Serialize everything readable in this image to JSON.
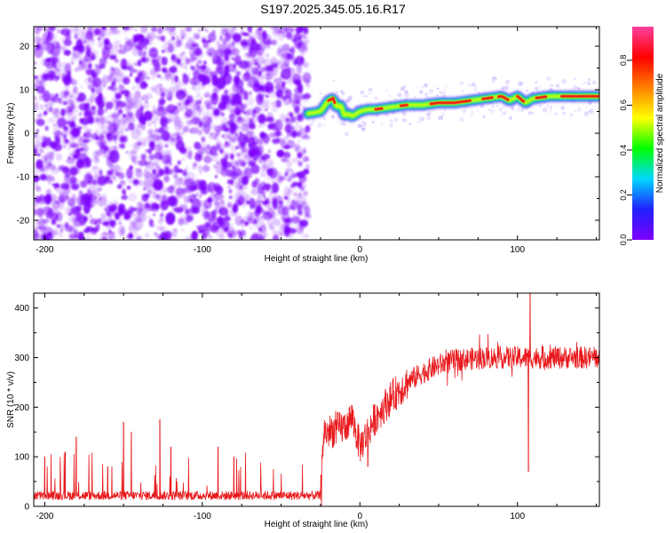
{
  "title": "S197.2025.345.05.16.R17",
  "chart_data": [
    {
      "type": "heatmap",
      "name": "spectrogram",
      "xlabel": "Height of straight line (km)",
      "ylabel": "Frequency (Hz)",
      "xlim": [
        -207,
        152
      ],
      "ylim": [
        -24.5,
        24.5
      ],
      "xticks": [
        -200,
        -100,
        0,
        100
      ],
      "yticks": [
        -20,
        -10,
        0,
        10,
        20
      ],
      "noise_region": {
        "x_range": [
          -207,
          -33
        ],
        "color": "#7c00ff"
      },
      "signal_track": {
        "x": [
          -33,
          -25,
          -20,
          -17,
          -15,
          -12,
          -10,
          -7,
          -5,
          0,
          5,
          10,
          20,
          30,
          40,
          50,
          60,
          70,
          80,
          90,
          95,
          100,
          105,
          110,
          120,
          130,
          140,
          152
        ],
        "y": [
          4.5,
          5.0,
          7.5,
          8.0,
          6.0,
          6.5,
          4.0,
          4.5,
          3.8,
          5.0,
          5.5,
          5.5,
          6.0,
          6.5,
          6.5,
          7.0,
          7.0,
          7.5,
          8.0,
          8.5,
          7.5,
          8.5,
          7.0,
          8.0,
          8.5,
          8.5,
          8.5,
          8.5
        ],
        "peak_amplitude": 0.95
      },
      "colorbar": {
        "label": "Normalized spectral amplitude",
        "range": [
          0.0,
          0.95
        ],
        "ticks": [
          "0.0",
          "0.2",
          "0.4",
          "0.6",
          "0.8"
        ],
        "tick_values": [
          0.0,
          0.2,
          0.4,
          0.6,
          0.8
        ],
        "stops": [
          "#7f00ff",
          "#2020ff",
          "#00d8ff",
          "#00ff00",
          "#ffff00",
          "#ff8000",
          "#ff0000",
          "#ff40a0"
        ]
      }
    },
    {
      "type": "line",
      "name": "snr",
      "xlabel": "Height of straight line (km)",
      "ylabel": "SNR (10 * v/v)",
      "xlim": [
        -207,
        152
      ],
      "ylim": [
        0,
        430
      ],
      "xticks": [
        -200,
        -100,
        0,
        100
      ],
      "yticks": [
        0,
        100,
        200,
        300,
        400
      ],
      "color": "#e8191c",
      "trend": {
        "x": [
          -207,
          -25,
          -23,
          -20,
          -10,
          -5,
          0,
          10,
          20,
          30,
          40,
          50,
          60,
          80,
          100,
          120,
          140,
          152
        ],
        "y": [
          20,
          20,
          150,
          150,
          160,
          180,
          120,
          180,
          220,
          250,
          270,
          285,
          295,
          300,
          300,
          300,
          300,
          300
        ]
      },
      "spikes": [
        {
          "x": 108,
          "y": 430
        },
        {
          "x": 107,
          "y": 70
        },
        {
          "x": -127,
          "y": 175
        },
        {
          "x": -150,
          "y": 170
        },
        {
          "x": -180,
          "y": 140
        },
        {
          "x": -145,
          "y": 150
        },
        {
          "x": -187,
          "y": 110
        },
        {
          "x": -200,
          "y": 100
        },
        {
          "x": -160,
          "y": 80
        },
        {
          "x": -120,
          "y": 120
        },
        {
          "x": -90,
          "y": 120
        },
        {
          "x": -80,
          "y": 100
        },
        {
          "x": 5,
          "y": 80
        }
      ]
    }
  ]
}
